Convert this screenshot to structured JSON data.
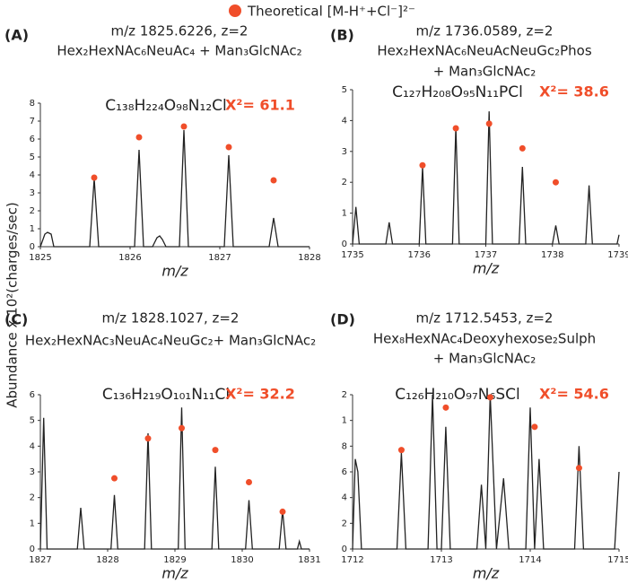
{
  "legend": "Theoretical [M-H⁺+Cl⁻]²⁻",
  "legend_color": "#f04e2a",
  "ylabel": "Abundance x 10²(charges/sec)",
  "chart_data": [
    {
      "type": "line",
      "panel": "(A)",
      "title": [
        "m/z 1825.6226, z=2",
        "Hex₂HexNAc₆NeuAc₄ + Man₃GlcNAc₂"
      ],
      "formula": "C₁₃₈H₂₂₄O₉₈N₁₂Cl",
      "chi2": "X²= 61.1",
      "xlabel": "m/z",
      "xlim": [
        1825,
        1828
      ],
      "xticks": [
        1825,
        1826,
        1827,
        1828
      ],
      "ylim": [
        0,
        8
      ],
      "yticks": [
        0,
        1,
        2,
        3,
        4,
        5,
        6,
        7,
        8
      ],
      "spectrum": {
        "color": "#222222",
        "x": [
          1825.0,
          1825.05,
          1825.08,
          1825.12,
          1825.15,
          1825.55,
          1825.6,
          1825.65,
          1826.05,
          1826.1,
          1826.15,
          1826.25,
          1826.3,
          1826.33,
          1826.36,
          1826.4,
          1826.55,
          1826.6,
          1826.65,
          1827.05,
          1827.1,
          1827.15,
          1827.55,
          1827.6,
          1827.65,
          1828.0
        ],
        "y": [
          0,
          0.7,
          0.8,
          0.7,
          0,
          0,
          3.8,
          0,
          0,
          5.4,
          0,
          0,
          0.5,
          0.6,
          0.4,
          0,
          0,
          6.5,
          0,
          0,
          5.1,
          0,
          0,
          1.6,
          0,
          0
        ]
      },
      "theoretical": {
        "color": "#f04e2a",
        "x": [
          1825.6,
          1826.1,
          1826.6,
          1827.1,
          1827.6
        ],
        "y": [
          3.85,
          6.1,
          6.7,
          5.55,
          3.7
        ]
      }
    },
    {
      "type": "line",
      "panel": "(B)",
      "title": [
        "m/z 1736.0589, z=2",
        "Hex₂HexNAc₆NeuAcNeuGc₂Phos",
        "+ Man₃GlcNAc₂"
      ],
      "formula": "C₁₂₇H₂₀₈O₉₅N₁₁PCl",
      "chi2": "X²= 38.6",
      "xlabel": "m/z",
      "xlim": [
        1735,
        1739
      ],
      "xticks": [
        1735,
        1736,
        1737,
        1738,
        1739
      ],
      "ylim": [
        0,
        5
      ],
      "yticks": [
        0,
        1,
        2,
        3,
        4,
        5
      ],
      "spectrum": {
        "color": "#222222",
        "x": [
          1735.0,
          1735.05,
          1735.1,
          1735.5,
          1735.55,
          1735.6,
          1736.0,
          1736.05,
          1736.1,
          1736.5,
          1736.55,
          1736.6,
          1737.0,
          1737.05,
          1737.1,
          1737.5,
          1737.55,
          1737.6,
          1738.0,
          1738.05,
          1738.1,
          1738.5,
          1738.55,
          1738.6,
          1738.97,
          1739.0
        ],
        "y": [
          0,
          1.2,
          0,
          0,
          0.7,
          0,
          0,
          2.5,
          0,
          0,
          3.8,
          0,
          0,
          4.3,
          0,
          0,
          2.5,
          0,
          0,
          0.6,
          0,
          0,
          1.9,
          0,
          0,
          0.3
        ]
      },
      "theoretical": {
        "color": "#f04e2a",
        "x": [
          1736.05,
          1736.55,
          1737.05,
          1737.55,
          1738.05
        ],
        "y": [
          2.55,
          3.75,
          3.9,
          3.1,
          2.0
        ]
      }
    },
    {
      "type": "line",
      "panel": "(C)",
      "title": [
        "m/z 1828.1027, z=2",
        "Hex₂HexNAc₃NeuAc₄NeuGc₂+ Man₃GlcNAc₂"
      ],
      "formula": "C₁₃₆H₂₁₉O₁₀₁N₁₁Cl",
      "chi2": "X²= 32.2",
      "xlabel": "m/z",
      "xlim": [
        1827,
        1831
      ],
      "xticks": [
        1827,
        1828,
        1829,
        1830,
        1831
      ],
      "ylim": [
        0,
        6
      ],
      "yticks": [
        0,
        1,
        2,
        3,
        4,
        5,
        6
      ],
      "spectrum": {
        "color": "#222222",
        "x": [
          1827.0,
          1827.05,
          1827.1,
          1827.55,
          1827.6,
          1827.65,
          1828.05,
          1828.1,
          1828.15,
          1828.55,
          1828.6,
          1828.65,
          1829.05,
          1829.1,
          1829.15,
          1829.55,
          1829.6,
          1829.65,
          1830.05,
          1830.1,
          1830.15,
          1830.55,
          1830.6,
          1830.65,
          1830.82,
          1830.85,
          1830.88,
          1831.0
        ],
        "y": [
          0,
          5.1,
          0,
          0,
          1.6,
          0,
          0,
          2.1,
          0,
          0,
          4.5,
          0,
          0,
          5.5,
          0,
          0,
          3.2,
          0,
          0,
          1.9,
          0,
          0,
          1.5,
          0,
          0,
          0.3,
          0,
          0
        ]
      },
      "theoretical": {
        "color": "#f04e2a",
        "x": [
          1828.1,
          1828.6,
          1829.1,
          1829.6,
          1830.1,
          1830.6
        ],
        "y": [
          2.75,
          4.3,
          4.7,
          3.85,
          2.6,
          1.45
        ]
      }
    },
    {
      "type": "line",
      "panel": "(D)",
      "title": [
        "m/z 1712.5453, z=2",
        "Hex₈HexNAc₄Deoxyhexose₂Sulph",
        "+ Man₃GlcNAc₂"
      ],
      "formula": "C₁₂₆H₂₁₀O₉₇N₆SCl",
      "chi2": "X²= 54.6",
      "xlabel": "m/z",
      "xlim": [
        1712,
        1715
      ],
      "xticks": [
        1712,
        1713,
        1714,
        1715
      ],
      "ylim": [
        0,
        1.2
      ],
      "yticks": [
        0,
        {
          "value": 0.2,
          "label": "2"
        },
        {
          "value": 0.4,
          "label": "4"
        },
        {
          "value": 0.6,
          "label": "6"
        },
        {
          "value": 0.8,
          "label": "8"
        },
        {
          "value": 1.0,
          "label": "1"
        },
        {
          "value": 1.2,
          "label": "2"
        }
      ],
      "spectrum": {
        "color": "#222222",
        "x": [
          1712.0,
          1712.03,
          1712.06,
          1712.1,
          1712.5,
          1712.55,
          1712.6,
          1712.85,
          1712.9,
          1712.95,
          1713.0,
          1713.05,
          1713.1,
          1713.4,
          1713.45,
          1713.5,
          1713.55,
          1713.62,
          1713.7,
          1713.76,
          1713.95,
          1714.0,
          1714.05,
          1714.1,
          1714.15,
          1714.5,
          1714.55,
          1714.6,
          1714.95,
          1715.0
        ],
        "y": [
          0,
          0.7,
          0.6,
          0,
          0,
          0.75,
          0,
          0,
          1.2,
          0,
          0,
          0.95,
          0,
          0,
          0.5,
          0,
          1.2,
          0,
          0.55,
          0,
          0,
          1.1,
          0,
          0.7,
          0,
          0,
          0.8,
          0,
          0,
          0.6
        ]
      },
      "theoretical": {
        "color": "#f04e2a",
        "x": [
          1712.55,
          1713.05,
          1713.55,
          1714.05,
          1714.55
        ],
        "y": [
          0.77,
          1.1,
          1.18,
          0.95,
          0.63
        ]
      }
    }
  ]
}
